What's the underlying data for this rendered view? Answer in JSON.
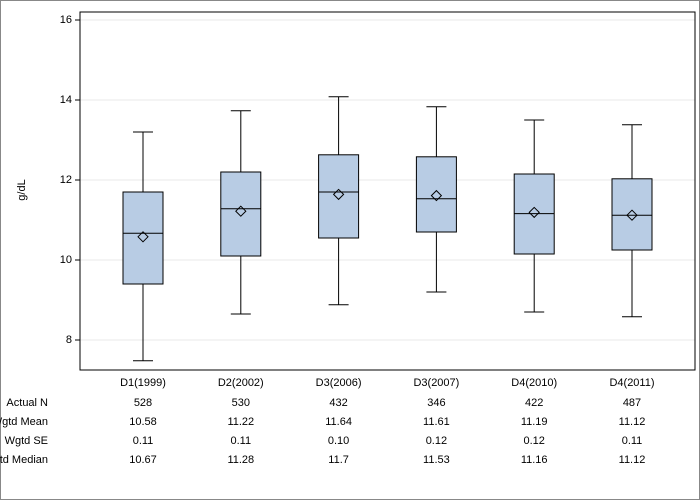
{
  "chart_data": {
    "type": "box",
    "y_label": "g/dL",
    "ylim": [
      7.25,
      16.2
    ],
    "yticks": [
      8,
      10,
      12,
      14,
      16
    ],
    "grid": true,
    "box_color": "#b8cce4",
    "categories": [
      "D1(1999)",
      "D2(2002)",
      "D3(2006)",
      "D3(2007)",
      "D4(2010)",
      "D4(2011)"
    ],
    "boxes": [
      {
        "low": 7.48,
        "q1": 9.4,
        "median": 10.67,
        "q3": 11.7,
        "high": 13.2,
        "mean": 10.58
      },
      {
        "low": 8.65,
        "q1": 10.1,
        "median": 11.28,
        "q3": 12.2,
        "high": 13.73,
        "mean": 11.22
      },
      {
        "low": 8.88,
        "q1": 10.55,
        "median": 11.7,
        "q3": 12.63,
        "high": 14.08,
        "mean": 11.64
      },
      {
        "low": 9.2,
        "q1": 10.7,
        "median": 11.53,
        "q3": 12.58,
        "high": 13.83,
        "mean": 11.61
      },
      {
        "low": 8.7,
        "q1": 10.15,
        "median": 11.16,
        "q3": 12.15,
        "high": 13.5,
        "mean": 11.19
      },
      {
        "low": 8.58,
        "q1": 10.25,
        "median": 11.12,
        "q3": 12.03,
        "high": 13.38,
        "mean": 11.12
      }
    ],
    "table": [
      {
        "label": "Actual N",
        "cells": [
          "528",
          "530",
          "432",
          "346",
          "422",
          "487"
        ]
      },
      {
        "label": "Wgtd Mean",
        "cells": [
          "10.58",
          "11.22",
          "11.64",
          "11.61",
          "11.19",
          "11.12"
        ]
      },
      {
        "label": "Wgtd SE",
        "cells": [
          "0.11",
          "0.11",
          "0.10",
          "0.12",
          "0.12",
          "0.11"
        ]
      },
      {
        "label": "Wgtd Median",
        "cells": [
          "10.67",
          "11.28",
          "11.7",
          "11.53",
          "11.16",
          "11.12"
        ]
      }
    ]
  }
}
